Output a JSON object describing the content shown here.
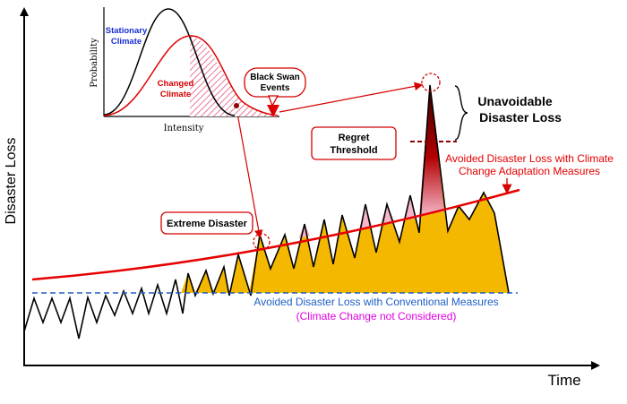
{
  "axes": {
    "x_label": "Time",
    "y_label": "Disaster Loss"
  },
  "inset": {
    "x_label": "Intensity",
    "y_label": "Probability",
    "stationary_label": [
      "Stationary",
      "Climate"
    ],
    "changed_label": [
      "Changed",
      "Climate"
    ],
    "black_swan_label": [
      "Black Swan",
      "Events"
    ]
  },
  "labels": {
    "extreme_disaster": "Extreme Disaster",
    "regret_threshold": [
      "Regret",
      "Threshold"
    ],
    "unavoidable_loss": [
      "Unavoidable",
      "Disaster Loss"
    ],
    "adaptation_avoided": [
      "Avoided Disaster Loss with Climate",
      "Change Adaptation Measures"
    ],
    "conventional_avoided": "Avoided Disaster Loss with Conventional Measures",
    "climate_not_considered": "(Climate Change not Considered)"
  },
  "colors": {
    "adaptation_fill": "#f5b800",
    "unavoidable_fill": "#f4b6c8",
    "adaptation_line": "#e60000",
    "conventional_line": "#1f5fc4",
    "stationary_text": "#1a2fd1",
    "changed_text": "#d40000",
    "magenta_text": "#e000e0",
    "dark_red": "#8b0000"
  }
}
